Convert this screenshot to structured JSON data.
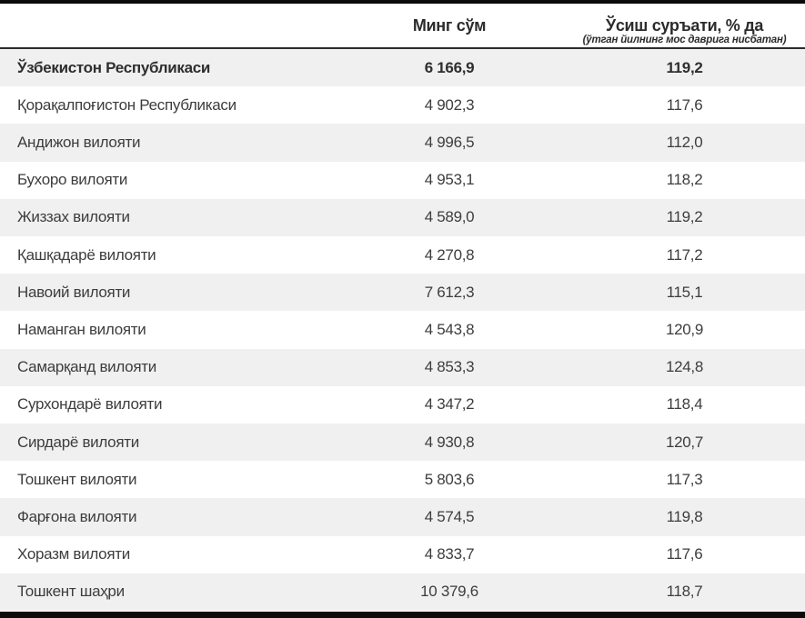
{
  "header": {
    "amount": {
      "label": "Минг сўм"
    },
    "growth": {
      "label": "Ўсиш суръати, % да",
      "sublabel": "(ўтган йилнинг мос даврига нисбатан)"
    }
  },
  "table": {
    "rows": [
      {
        "region": "Ўзбекистон Республикаси",
        "amount": "6 166,9",
        "growth": "119,2"
      },
      {
        "region": "Қорақалпоғистон Республикаси",
        "amount": "4 902,3",
        "growth": "117,6"
      },
      {
        "region": "Андижон вилояти",
        "amount": "4 996,5",
        "growth": "112,0"
      },
      {
        "region": "Бухоро вилояти",
        "amount": "4 953,1",
        "growth": "118,2"
      },
      {
        "region": "Жиззах вилояти",
        "amount": "4 589,0",
        "growth": "119,2"
      },
      {
        "region": "Қашқадарё вилояти",
        "amount": "4 270,8",
        "growth": "117,2"
      },
      {
        "region": "Навоий вилояти",
        "amount": "7 612,3",
        "growth": "115,1"
      },
      {
        "region": "Наманган вилояти",
        "amount": "4 543,8",
        "growth": "120,9"
      },
      {
        "region": "Самарқанд вилояти",
        "amount": "4 853,3",
        "growth": "124,8"
      },
      {
        "region": "Сурхондарё вилояти",
        "amount": "4 347,2",
        "growth": "118,4"
      },
      {
        "region": "Сирдарё вилояти",
        "amount": "4 930,8",
        "growth": "120,7"
      },
      {
        "region": "Тошкент вилояти",
        "amount": "5 803,6",
        "growth": "117,3"
      },
      {
        "region": "Фарғона вилояти",
        "amount": "4 574,5",
        "growth": "119,8"
      },
      {
        "region": "Хоразм вилояти",
        "amount": "4 833,7",
        "growth": "117,6"
      },
      {
        "region": "Тошкент шаҳри",
        "amount": "10 379,6",
        "growth": "118,7"
      }
    ]
  },
  "colors": {
    "row_alt_background": "#f0f0f0",
    "text": "#3d3d3d",
    "header_text": "#2b2b2b",
    "frame_bar": "#0b0b0b"
  }
}
